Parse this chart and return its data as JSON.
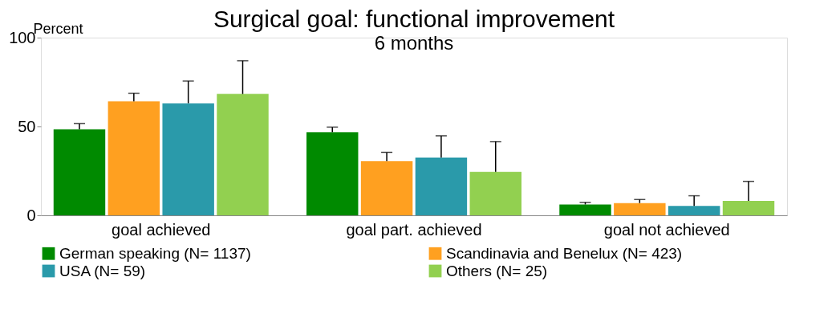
{
  "chart_data": {
    "type": "bar",
    "title": "Surgical goal: functional improvement",
    "subtitle": "6 months",
    "ylabel": "Percent",
    "categories": [
      "goal achieved",
      "goal part. achieved",
      "goal not achieved"
    ],
    "ylim": [
      0,
      100
    ],
    "yticks": [
      0,
      50,
      100
    ],
    "grid": false,
    "legend": "bottom",
    "series": [
      {
        "name": "German speaking (N= 1137)",
        "color": "#008a00",
        "values": [
          48.4,
          46.7,
          6.1
        ],
        "errors": [
          [
            48.4,
            51.6
          ],
          [
            46.7,
            49.6
          ],
          [
            6.1,
            7.3
          ]
        ]
      },
      {
        "name": "Scandinavia and Benelux (N= 423)",
        "color": "#ffa020",
        "values": [
          64.2,
          30.5,
          6.9
        ],
        "errors": [
          [
            64.2,
            68.7
          ],
          [
            30.5,
            35.4
          ],
          [
            6.9,
            8.9
          ]
        ]
      },
      {
        "name": "USA (N= 59)",
        "color": "#2a9aaa",
        "values": [
          63,
          32.5,
          5.3
        ],
        "errors": [
          [
            63,
            75.6
          ],
          [
            32.5,
            44.7
          ],
          [
            5.3,
            11
          ]
        ]
      },
      {
        "name": "Others (N= 25)",
        "color": "#92d050",
        "values": [
          68.3,
          24.4,
          8.1
        ],
        "errors": [
          [
            68.3,
            87
          ],
          [
            24.4,
            41.5
          ],
          [
            8.1,
            19.1
          ]
        ]
      }
    ]
  }
}
